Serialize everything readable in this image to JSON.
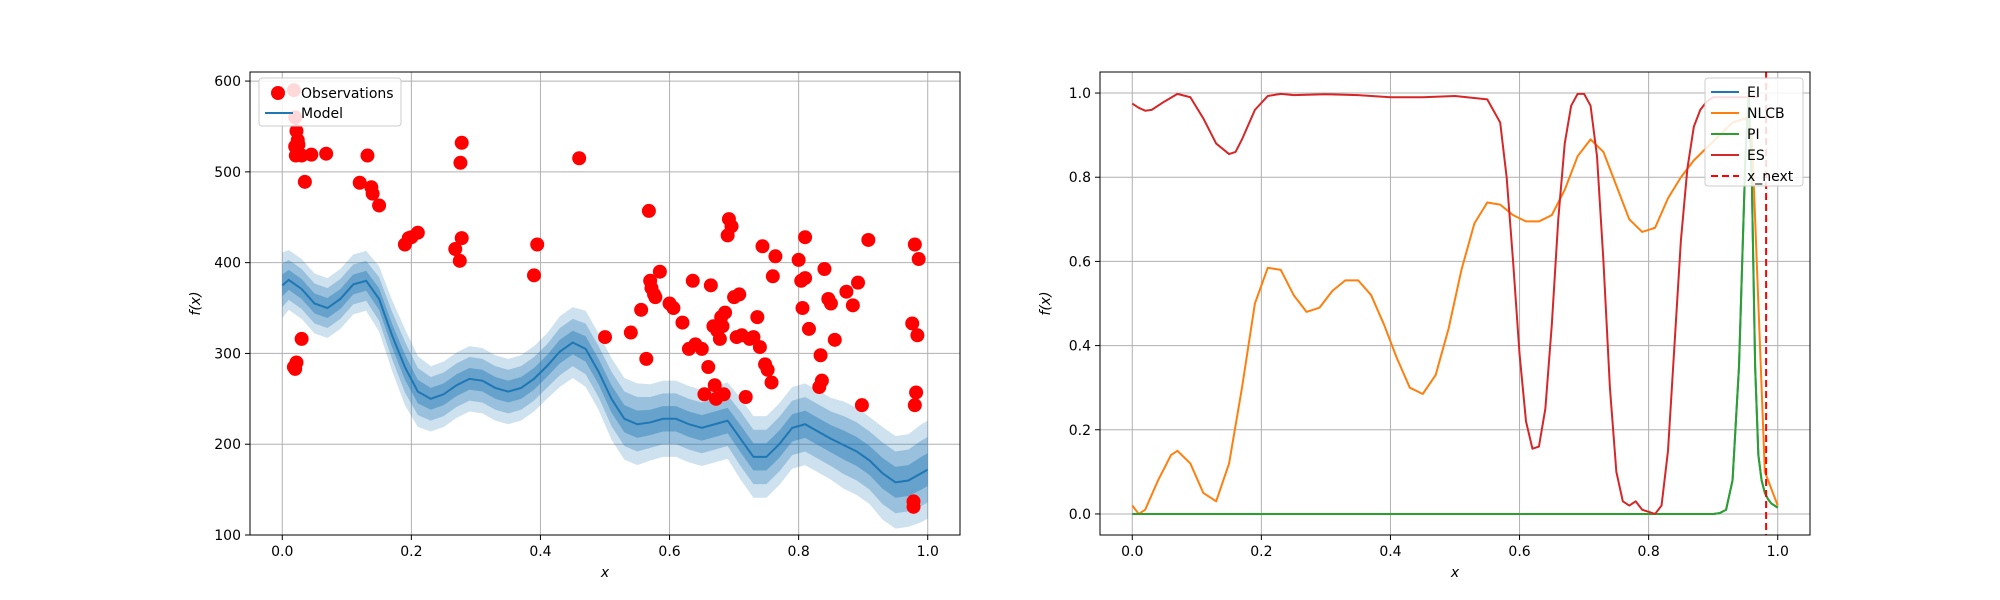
{
  "chart_data": [
    {
      "type": "scatter",
      "xlabel": "x",
      "ylabel": "f(x)",
      "xlim": [
        -0.05,
        1.05
      ],
      "ylim": [
        100,
        610
      ],
      "xticks": [
        0.0,
        0.2,
        0.4,
        0.6,
        0.8,
        1.0
      ],
      "xtick_labels": [
        "0.0",
        "0.2",
        "0.4",
        "0.6",
        "0.8",
        "1.0"
      ],
      "yticks": [
        100,
        200,
        300,
        400,
        500,
        600
      ],
      "ytick_labels": [
        "100",
        "200",
        "300",
        "400",
        "500",
        "600"
      ],
      "grid": true,
      "legend": {
        "position": "upper-left",
        "entries": [
          {
            "label": "Observations",
            "color": "#ff0000",
            "marker": "circle"
          },
          {
            "label": "Model",
            "color": "#1f77b4",
            "marker": "line"
          }
        ]
      },
      "model": {
        "color": "#1f77b4",
        "x": [
          0.0,
          0.01,
          0.03,
          0.05,
          0.07,
          0.09,
          0.11,
          0.13,
          0.15,
          0.17,
          0.19,
          0.21,
          0.23,
          0.25,
          0.27,
          0.29,
          0.31,
          0.33,
          0.35,
          0.37,
          0.39,
          0.41,
          0.43,
          0.45,
          0.47,
          0.49,
          0.51,
          0.53,
          0.55,
          0.57,
          0.59,
          0.61,
          0.63,
          0.65,
          0.67,
          0.69,
          0.71,
          0.73,
          0.75,
          0.77,
          0.79,
          0.81,
          0.83,
          0.85,
          0.87,
          0.89,
          0.91,
          0.93,
          0.95,
          0.97,
          0.99,
          1.0
        ],
        "mean": [
          375,
          381,
          371,
          355,
          350,
          360,
          376,
          380,
          360,
          320,
          285,
          258,
          250,
          255,
          265,
          272,
          270,
          262,
          258,
          262,
          272,
          286,
          302,
          312,
          305,
          280,
          250,
          228,
          222,
          224,
          228,
          228,
          222,
          218,
          222,
          226,
          206,
          186,
          186,
          200,
          218,
          222,
          214,
          206,
          199,
          192,
          182,
          168,
          158,
          160,
          168,
          172
        ],
        "band_sigma": [
          12,
          11,
          11,
          11,
          11,
          11,
          11,
          11,
          12,
          13,
          14,
          13,
          12,
          12,
          12,
          12,
          12,
          12,
          12,
          12,
          12,
          12,
          13,
          13,
          14,
          14,
          15,
          15,
          15,
          14,
          14,
          14,
          14,
          14,
          14,
          14,
          15,
          15,
          15,
          15,
          15,
          15,
          15,
          15,
          16,
          16,
          16,
          17,
          17,
          17,
          18,
          18
        ]
      },
      "observations": {
        "color": "#ff0000",
        "x": [
          0.018,
          0.02,
          0.022,
          0.024,
          0.02,
          0.021,
          0.025,
          0.03,
          0.02,
          0.03,
          0.018,
          0.022,
          0.035,
          0.045,
          0.068,
          0.12,
          0.132,
          0.138,
          0.14,
          0.15,
          0.19,
          0.196,
          0.2,
          0.21,
          0.268,
          0.275,
          0.278,
          0.276,
          0.278,
          0.39,
          0.395,
          0.46,
          0.5,
          0.54,
          0.556,
          0.564,
          0.568,
          0.57,
          0.572,
          0.576,
          0.578,
          0.585,
          0.6,
          0.606,
          0.62,
          0.63,
          0.636,
          0.64,
          0.65,
          0.654,
          0.66,
          0.664,
          0.668,
          0.67,
          0.672,
          0.674,
          0.678,
          0.68,
          0.682,
          0.684,
          0.686,
          0.69,
          0.692,
          0.696,
          0.7,
          0.704,
          0.708,
          0.712,
          0.718,
          0.724,
          0.73,
          0.736,
          0.74,
          0.744,
          0.748,
          0.752,
          0.758,
          0.76,
          0.764,
          0.8,
          0.804,
          0.806,
          0.81,
          0.81,
          0.816,
          0.832,
          0.834,
          0.836,
          0.84,
          0.846,
          0.85,
          0.856,
          0.874,
          0.884,
          0.892,
          0.898,
          0.908,
          0.976,
          0.978,
          0.978,
          0.98,
          0.982,
          0.984,
          0.986,
          0.98
        ],
        "y": [
          590,
          560,
          545,
          535,
          528,
          518,
          530,
          518,
          283,
          316,
          285,
          290,
          489,
          519,
          520,
          488,
          518,
          483,
          476,
          463,
          420,
          427,
          428,
          433,
          415,
          402,
          427,
          510,
          532,
          386,
          420,
          515,
          318,
          323,
          348,
          294,
          457,
          380,
          372,
          365,
          362,
          390,
          355,
          350,
          334,
          305,
          380,
          310,
          305,
          255,
          285,
          375,
          330,
          265,
          250,
          325,
          316,
          340,
          330,
          255,
          345,
          430,
          448,
          440,
          362,
          318,
          365,
          320,
          252,
          316,
          318,
          340,
          307,
          418,
          288,
          282,
          268,
          385,
          407,
          403,
          380,
          350,
          428,
          383,
          327,
          263,
          298,
          270,
          393,
          360,
          355,
          315,
          368,
          353,
          378,
          243,
          425,
          333,
          131,
          137,
          243,
          257,
          320,
          404,
          420
        ]
      }
    },
    {
      "type": "line",
      "xlabel": "x",
      "ylabel": "f(x)",
      "xlim": [
        -0.05,
        1.05
      ],
      "ylim": [
        -0.05,
        1.05
      ],
      "xticks": [
        0.0,
        0.2,
        0.4,
        0.6,
        0.8,
        1.0
      ],
      "xtick_labels": [
        "0.0",
        "0.2",
        "0.4",
        "0.6",
        "0.8",
        "1.0"
      ],
      "yticks": [
        0.0,
        0.2,
        0.4,
        0.6,
        0.8,
        1.0
      ],
      "ytick_labels": [
        "0.0",
        "0.2",
        "0.4",
        "0.6",
        "0.8",
        "1.0"
      ],
      "grid": true,
      "legend": {
        "position": "upper-right",
        "entries": [
          {
            "label": "EI",
            "color": "#1f77b4",
            "style": "solid"
          },
          {
            "label": "NLCB",
            "color": "#ff7f0e",
            "style": "solid"
          },
          {
            "label": "PI",
            "color": "#2ca02c",
            "style": "solid"
          },
          {
            "label": "ES",
            "color": "#d62728",
            "style": "solid"
          },
          {
            "label": "x_next",
            "color": "#ff0000",
            "style": "dashed"
          }
        ]
      },
      "series": [
        {
          "name": "EI",
          "color": "#1f77b4",
          "x": [
            0.0,
            0.1,
            0.2,
            0.3,
            0.4,
            0.5,
            0.6,
            0.7,
            0.8,
            0.88,
            0.9,
            0.91,
            0.92,
            0.93,
            0.94,
            0.95,
            0.955,
            0.96,
            0.965,
            0.97,
            0.975,
            0.98,
            0.985,
            0.99,
            1.0
          ],
          "y": [
            0,
            0,
            0,
            0,
            0,
            0,
            0,
            0,
            0,
            0,
            0,
            0.002,
            0.01,
            0.08,
            0.35,
            0.85,
            1.0,
            0.78,
            0.35,
            0.14,
            0.08,
            0.05,
            0.035,
            0.025,
            0.015
          ]
        },
        {
          "name": "NLCB",
          "color": "#ff7f0e",
          "x": [
            0.0,
            0.01,
            0.02,
            0.04,
            0.06,
            0.07,
            0.09,
            0.11,
            0.13,
            0.15,
            0.17,
            0.19,
            0.21,
            0.23,
            0.25,
            0.27,
            0.29,
            0.31,
            0.33,
            0.35,
            0.37,
            0.39,
            0.41,
            0.43,
            0.45,
            0.47,
            0.49,
            0.51,
            0.53,
            0.55,
            0.57,
            0.59,
            0.61,
            0.63,
            0.65,
            0.67,
            0.69,
            0.71,
            0.73,
            0.75,
            0.77,
            0.79,
            0.81,
            0.83,
            0.85,
            0.87,
            0.89,
            0.91,
            0.93,
            0.95,
            0.96,
            0.97,
            0.98,
            1.0
          ],
          "y": [
            0.02,
            0.0,
            0.01,
            0.08,
            0.14,
            0.15,
            0.12,
            0.05,
            0.03,
            0.12,
            0.3,
            0.5,
            0.585,
            0.58,
            0.52,
            0.48,
            0.49,
            0.53,
            0.555,
            0.555,
            0.52,
            0.45,
            0.37,
            0.3,
            0.285,
            0.33,
            0.44,
            0.58,
            0.69,
            0.74,
            0.735,
            0.71,
            0.695,
            0.695,
            0.71,
            0.77,
            0.85,
            0.89,
            0.86,
            0.78,
            0.7,
            0.67,
            0.68,
            0.75,
            0.8,
            0.84,
            0.87,
            0.9,
            0.93,
            0.94,
            0.9,
            0.5,
            0.1,
            0.02
          ]
        },
        {
          "name": "PI",
          "color": "#2ca02c",
          "x": [
            0.0,
            0.1,
            0.2,
            0.3,
            0.4,
            0.5,
            0.6,
            0.7,
            0.8,
            0.88,
            0.9,
            0.91,
            0.92,
            0.93,
            0.94,
            0.95,
            0.955,
            0.96,
            0.965,
            0.97,
            0.975,
            0.98,
            0.985,
            0.99,
            1.0
          ],
          "y": [
            0,
            0,
            0,
            0,
            0,
            0,
            0,
            0,
            0,
            0,
            0,
            0.002,
            0.01,
            0.08,
            0.35,
            0.85,
            1.0,
            0.78,
            0.35,
            0.14,
            0.08,
            0.05,
            0.035,
            0.025,
            0.015
          ]
        },
        {
          "name": "ES",
          "color": "#d62728",
          "x": [
            0.0,
            0.01,
            0.02,
            0.03,
            0.05,
            0.07,
            0.09,
            0.11,
            0.13,
            0.15,
            0.16,
            0.17,
            0.19,
            0.21,
            0.23,
            0.25,
            0.3,
            0.35,
            0.4,
            0.45,
            0.5,
            0.55,
            0.57,
            0.58,
            0.59,
            0.6,
            0.61,
            0.62,
            0.63,
            0.64,
            0.65,
            0.66,
            0.67,
            0.68,
            0.69,
            0.7,
            0.71,
            0.72,
            0.73,
            0.74,
            0.75,
            0.76,
            0.77,
            0.78,
            0.79,
            0.8,
            0.81,
            0.82,
            0.83,
            0.84,
            0.85,
            0.86,
            0.87,
            0.88,
            0.89,
            0.9,
            0.91,
            0.92,
            0.93,
            0.94,
            0.95,
            0.955,
            0.96,
            0.97
          ],
          "y": [
            0.975,
            0.965,
            0.958,
            0.96,
            0.98,
            0.998,
            0.99,
            0.94,
            0.88,
            0.855,
            0.86,
            0.89,
            0.96,
            0.993,
            0.998,
            0.995,
            0.997,
            0.995,
            0.99,
            0.99,
            0.993,
            0.985,
            0.93,
            0.8,
            0.6,
            0.38,
            0.22,
            0.155,
            0.16,
            0.25,
            0.45,
            0.7,
            0.88,
            0.97,
            0.998,
            0.998,
            0.97,
            0.85,
            0.6,
            0.3,
            0.1,
            0.03,
            0.02,
            0.03,
            0.01,
            0.005,
            0.0,
            0.02,
            0.15,
            0.4,
            0.65,
            0.82,
            0.92,
            0.96,
            0.98,
            0.99,
            0.99,
            0.99,
            0.99,
            0.99,
            0.99,
            0.99,
            0.99,
            0.99
          ]
        },
        {
          "name": "x_next",
          "color": "#ff0000",
          "style": "dashed",
          "vline_x": 0.982
        }
      ]
    }
  ]
}
